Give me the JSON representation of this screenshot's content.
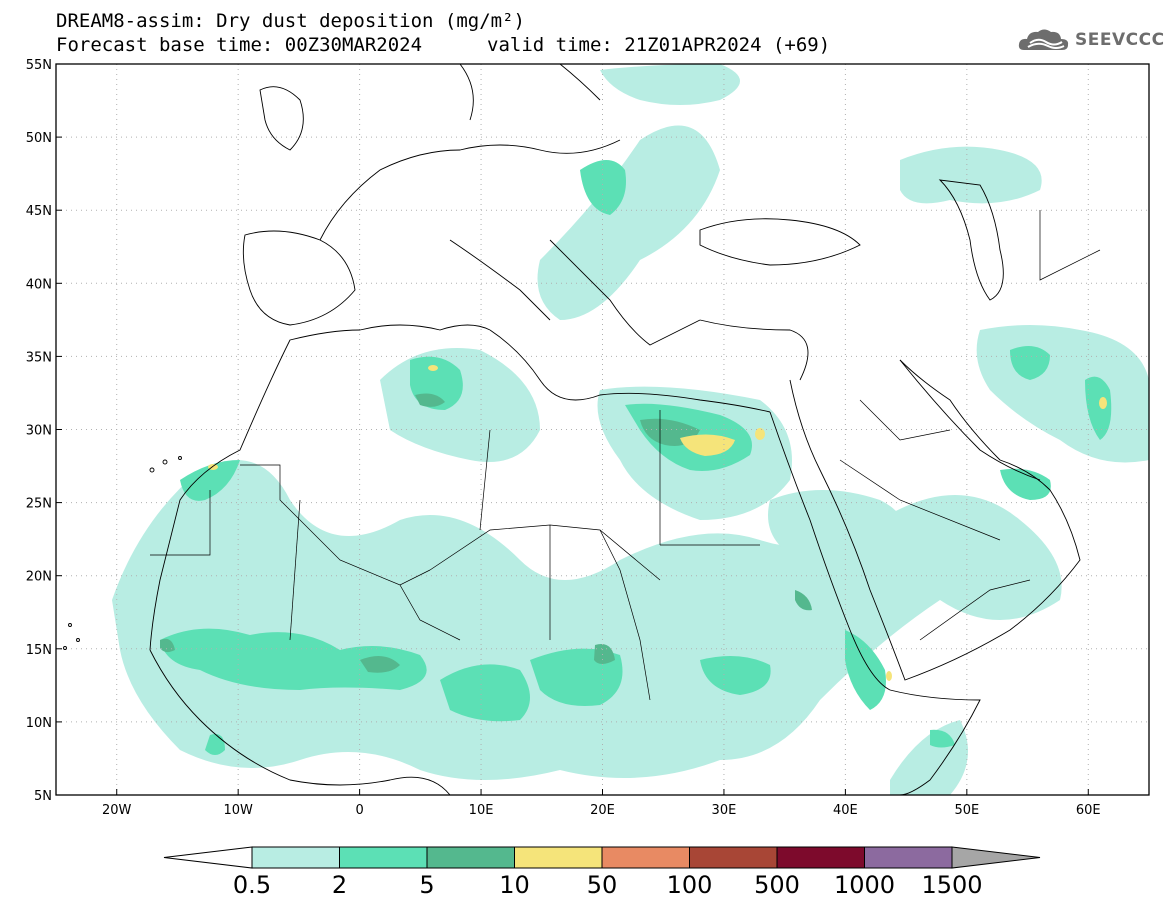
{
  "header": {
    "title": "DREAM8-assim: Dry dust deposition (mg/m²)",
    "base_time": "Forecast base time: 00Z30MAR2024",
    "valid_time": "valid time: 21Z01APR2024 (+69)"
  },
  "logo": {
    "text": "SEEVCCC",
    "icon": "cloud-icon"
  },
  "map": {
    "region": "North Africa, Europe and Middle East",
    "lon_range": [
      -25,
      65
    ],
    "lat_range": [
      5,
      55
    ],
    "grid": true,
    "lat_labels": [
      "55N",
      "50N",
      "45N",
      "40N",
      "35N",
      "30N",
      "25N",
      "20N",
      "15N",
      "10N",
      "5N"
    ],
    "lon_labels": [
      "20W",
      "10W",
      "0",
      "10E",
      "20E",
      "30E",
      "40E",
      "50E",
      "60E"
    ]
  },
  "colorbar": {
    "labels": [
      "0.5",
      "2",
      "5",
      "10",
      "50",
      "100",
      "500",
      "1000",
      "1500"
    ],
    "colors": [
      "#b8ede3",
      "#5ce0b5",
      "#54b88e",
      "#f5e47a",
      "#e88a63",
      "#a84636",
      "#7d0a2c",
      "#8c6a9f"
    ],
    "under_color": "#ffffff",
    "over_color": "#a6a6a6"
  }
}
